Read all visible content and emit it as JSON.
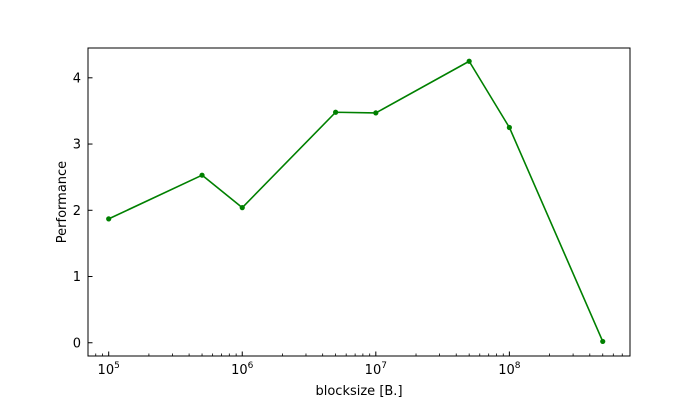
{
  "chart_data": {
    "type": "line",
    "xlabel": "blocksize [B.]",
    "ylabel": "Performance",
    "xscale": "log",
    "xlim": [
      70000,
      800000000
    ],
    "ylim": [
      -0.2,
      4.45
    ],
    "x_major_ticks": [
      {
        "value": 100000,
        "base": "10",
        "exp": "5"
      },
      {
        "value": 1000000,
        "base": "10",
        "exp": "6"
      },
      {
        "value": 10000000,
        "base": "10",
        "exp": "7"
      },
      {
        "value": 100000000,
        "base": "10",
        "exp": "8"
      }
    ],
    "y_ticks": [
      {
        "value": 0,
        "label": "0"
      },
      {
        "value": 1,
        "label": "1"
      },
      {
        "value": 2,
        "label": "2"
      },
      {
        "value": 3,
        "label": "3"
      },
      {
        "value": 4,
        "label": "4"
      }
    ],
    "series": [
      {
        "color": "#008000",
        "marker": "circle",
        "x": [
          100000,
          500000,
          1000000,
          5000000,
          10000000,
          50000000,
          100000000,
          500000000
        ],
        "y": [
          1.87,
          2.53,
          2.04,
          3.48,
          3.47,
          4.25,
          3.25,
          0.02
        ]
      }
    ],
    "grid": false,
    "legend": "none"
  }
}
